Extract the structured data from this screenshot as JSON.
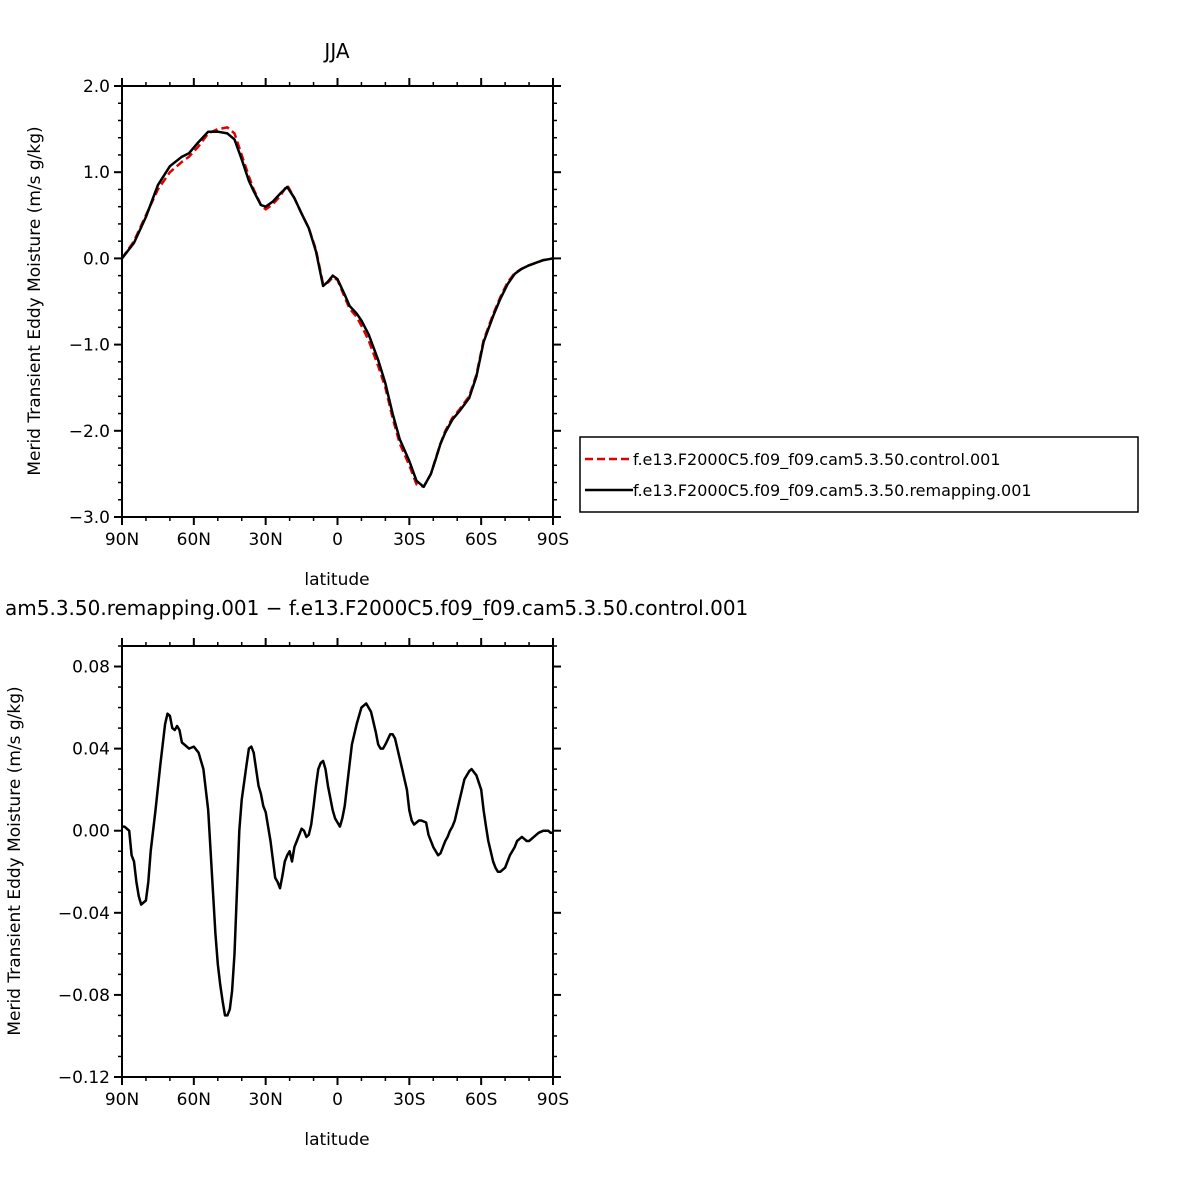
{
  "chart_data": [
    {
      "type": "line",
      "title": "JJA",
      "xlabel": "latitude",
      "ylabel": "Merid Transient Eddy Moisture (m/s g/kg)",
      "xlim": [
        90,
        -90
      ],
      "ylim": [
        -3.0,
        2.0
      ],
      "x_ticks": [
        90,
        60,
        30,
        0,
        -30,
        -60,
        -90
      ],
      "x_tick_labels": [
        "90N",
        "60N",
        "30N",
        "0",
        "30S",
        "60S",
        "90S"
      ],
      "y_ticks": [
        -3.0,
        -2.0,
        -1.0,
        0.0,
        1.0,
        2.0
      ],
      "y_tick_labels": [
        "−3.0",
        "−2.0",
        "−1.0",
        "0.0",
        "1.0",
        "2.0"
      ],
      "legend_position": "right",
      "series": [
        {
          "name": "f.e13.F2000C5.f09_f09.cam5.3.50.control.001",
          "color": "#e00000",
          "dash": "dashed",
          "x": [
            90,
            85,
            80,
            75,
            70,
            65,
            62,
            58,
            54,
            50,
            46,
            43,
            40,
            37,
            35,
            32,
            30,
            27,
            24,
            21,
            18,
            15,
            12,
            9,
            6,
            4,
            2,
            0,
            -3,
            -5,
            -8,
            -10,
            -13,
            -17,
            -20,
            -23,
            -26,
            -30,
            -33,
            -36,
            -39,
            -41,
            -43,
            -45,
            -48,
            -51,
            -55,
            -58,
            -61,
            -65,
            -68,
            -71,
            -74,
            -77,
            -80,
            -83,
            -86,
            -88,
            -90
          ],
          "y": [
            0.0,
            0.2,
            0.5,
            0.8,
            1.0,
            1.12,
            1.18,
            1.3,
            1.45,
            1.5,
            1.52,
            1.45,
            1.2,
            0.95,
            0.8,
            0.62,
            0.57,
            0.63,
            0.72,
            0.85,
            0.7,
            0.52,
            0.35,
            0.1,
            -0.3,
            -0.28,
            -0.22,
            -0.25,
            -0.45,
            -0.58,
            -0.68,
            -0.78,
            -0.95,
            -1.25,
            -1.5,
            -1.85,
            -2.15,
            -2.4,
            -2.62,
            -2.65,
            -2.5,
            -2.32,
            -2.15,
            -2.0,
            -1.85,
            -1.75,
            -1.6,
            -1.35,
            -0.95,
            -0.65,
            -0.45,
            -0.28,
            -0.17,
            -0.12,
            -0.08,
            -0.05,
            -0.02,
            -0.01,
            0.0
          ]
        },
        {
          "name": "f.e13.F2000C5.f09_f09.cam5.3.50.remapping.001",
          "color": "#000000",
          "dash": "solid",
          "x": [
            90,
            85,
            80,
            75,
            70,
            65,
            62,
            58,
            54,
            50,
            46,
            43,
            40,
            37,
            35,
            32,
            30,
            27,
            24,
            21,
            18,
            15,
            12,
            9,
            6,
            4,
            2,
            0,
            -3,
            -5,
            -8,
            -10,
            -13,
            -17,
            -20,
            -23,
            -26,
            -30,
            -33,
            -36,
            -39,
            -41,
            -43,
            -45,
            -48,
            -51,
            -55,
            -58,
            -61,
            -65,
            -68,
            -71,
            -74,
            -77,
            -80,
            -83,
            -86,
            -88,
            -90
          ],
          "y": [
            0.0,
            0.18,
            0.48,
            0.85,
            1.07,
            1.18,
            1.22,
            1.35,
            1.47,
            1.47,
            1.45,
            1.38,
            1.15,
            0.9,
            0.78,
            0.62,
            0.6,
            0.66,
            0.75,
            0.83,
            0.7,
            0.52,
            0.35,
            0.08,
            -0.32,
            -0.27,
            -0.2,
            -0.24,
            -0.42,
            -0.55,
            -0.64,
            -0.72,
            -0.88,
            -1.18,
            -1.45,
            -1.8,
            -2.1,
            -2.35,
            -2.58,
            -2.65,
            -2.5,
            -2.33,
            -2.15,
            -2.02,
            -1.87,
            -1.77,
            -1.62,
            -1.37,
            -0.97,
            -0.67,
            -0.47,
            -0.3,
            -0.18,
            -0.12,
            -0.08,
            -0.05,
            -0.02,
            -0.01,
            0.0
          ]
        }
      ]
    },
    {
      "type": "line",
      "title": "am5.3.50.remapping.001  −  f.e13.F2000C5.f09_f09.cam5.3.50.control.001",
      "xlabel": "latitude",
      "ylabel": "Merid Transient Eddy Moisture (m/s g/kg)",
      "xlim": [
        90,
        -90
      ],
      "ylim": [
        -0.12,
        0.09
      ],
      "x_ticks": [
        90,
        60,
        30,
        0,
        -30,
        -60,
        -90
      ],
      "x_tick_labels": [
        "90N",
        "60N",
        "30N",
        "0",
        "30S",
        "60S",
        "90S"
      ],
      "y_ticks": [
        -0.12,
        -0.08,
        -0.04,
        0.0,
        0.04,
        0.08
      ],
      "y_tick_labels": [
        "−0.12",
        "−0.08",
        "−0.04",
        "0.00",
        "0.04",
        "0.08"
      ],
      "series": [
        {
          "color": "#000000",
          "dash": "solid",
          "x": [
            90,
            89,
            87,
            86,
            85,
            84,
            83,
            82,
            80,
            79,
            78,
            76,
            74,
            72,
            71,
            70,
            69,
            68,
            67,
            66,
            65,
            64,
            62,
            60,
            58,
            56,
            54,
            53,
            52,
            51,
            50,
            49,
            48,
            47,
            46,
            45,
            44,
            43,
            42,
            41,
            40,
            38,
            37,
            36,
            35,
            34,
            33,
            32,
            31,
            30,
            28,
            26,
            25,
            24,
            23,
            22,
            21,
            20,
            19,
            18,
            17,
            15,
            14,
            13,
            12,
            11,
            10,
            9,
            8,
            7,
            6,
            5,
            4,
            3,
            2,
            1,
            0,
            -1,
            -2,
            -3,
            -4,
            -5,
            -6,
            -8,
            -10,
            -12,
            -14,
            -16,
            -17,
            -18,
            -19,
            -20,
            -22,
            -23,
            -24,
            -25,
            -26,
            -27,
            -28,
            -29,
            -30,
            -31,
            -32,
            -34,
            -35,
            -37,
            -38,
            -40,
            -42,
            -43,
            -44,
            -45,
            -46,
            -47,
            -48,
            -49,
            -50,
            -51,
            -52,
            -53,
            -55,
            -56,
            -58,
            -60,
            -61,
            -62,
            -63,
            -64,
            -65,
            -66,
            -67,
            -68,
            -70,
            -72,
            -74,
            -75,
            -76,
            -77,
            -78,
            -79,
            -80,
            -82,
            -84,
            -86,
            -87,
            -88,
            -89,
            -90
          ],
          "y": [
            0.002,
            0.002,
            0.0,
            -0.012,
            -0.015,
            -0.025,
            -0.032,
            -0.036,
            -0.034,
            -0.025,
            -0.01,
            0.01,
            0.032,
            0.052,
            0.057,
            0.056,
            0.05,
            0.049,
            0.051,
            0.049,
            0.043,
            0.042,
            0.04,
            0.041,
            0.038,
            0.03,
            0.01,
            -0.01,
            -0.03,
            -0.05,
            -0.065,
            -0.075,
            -0.083,
            -0.09,
            -0.09,
            -0.087,
            -0.078,
            -0.06,
            -0.03,
            0.0,
            0.015,
            0.032,
            0.04,
            0.041,
            0.038,
            0.03,
            0.022,
            0.018,
            0.012,
            0.009,
            -0.005,
            -0.023,
            -0.025,
            -0.028,
            -0.022,
            -0.015,
            -0.012,
            -0.01,
            -0.015,
            -0.008,
            -0.005,
            0.001,
            0.0,
            -0.003,
            -0.002,
            0.003,
            0.012,
            0.022,
            0.03,
            0.033,
            0.034,
            0.03,
            0.022,
            0.016,
            0.01,
            0.006,
            0.004,
            0.002,
            0.006,
            0.012,
            0.022,
            0.032,
            0.042,
            0.052,
            0.06,
            0.062,
            0.058,
            0.048,
            0.042,
            0.04,
            0.04,
            0.042,
            0.047,
            0.047,
            0.045,
            0.04,
            0.035,
            0.03,
            0.025,
            0.02,
            0.01,
            0.005,
            0.003,
            0.005,
            0.005,
            0.004,
            -0.002,
            -0.008,
            -0.012,
            -0.011,
            -0.008,
            -0.005,
            -0.003,
            -0.0,
            0.002,
            0.005,
            0.01,
            0.015,
            0.02,
            0.025,
            0.029,
            0.03,
            0.027,
            0.02,
            0.01,
            0.002,
            -0.005,
            -0.01,
            -0.015,
            -0.018,
            -0.02,
            -0.02,
            -0.018,
            -0.012,
            -0.008,
            -0.005,
            -0.004,
            -0.003,
            -0.004,
            -0.005,
            -0.005,
            -0.003,
            -0.001,
            0.0,
            -0.0,
            0.0,
            -0.001,
            -0.001
          ]
        }
      ]
    }
  ]
}
